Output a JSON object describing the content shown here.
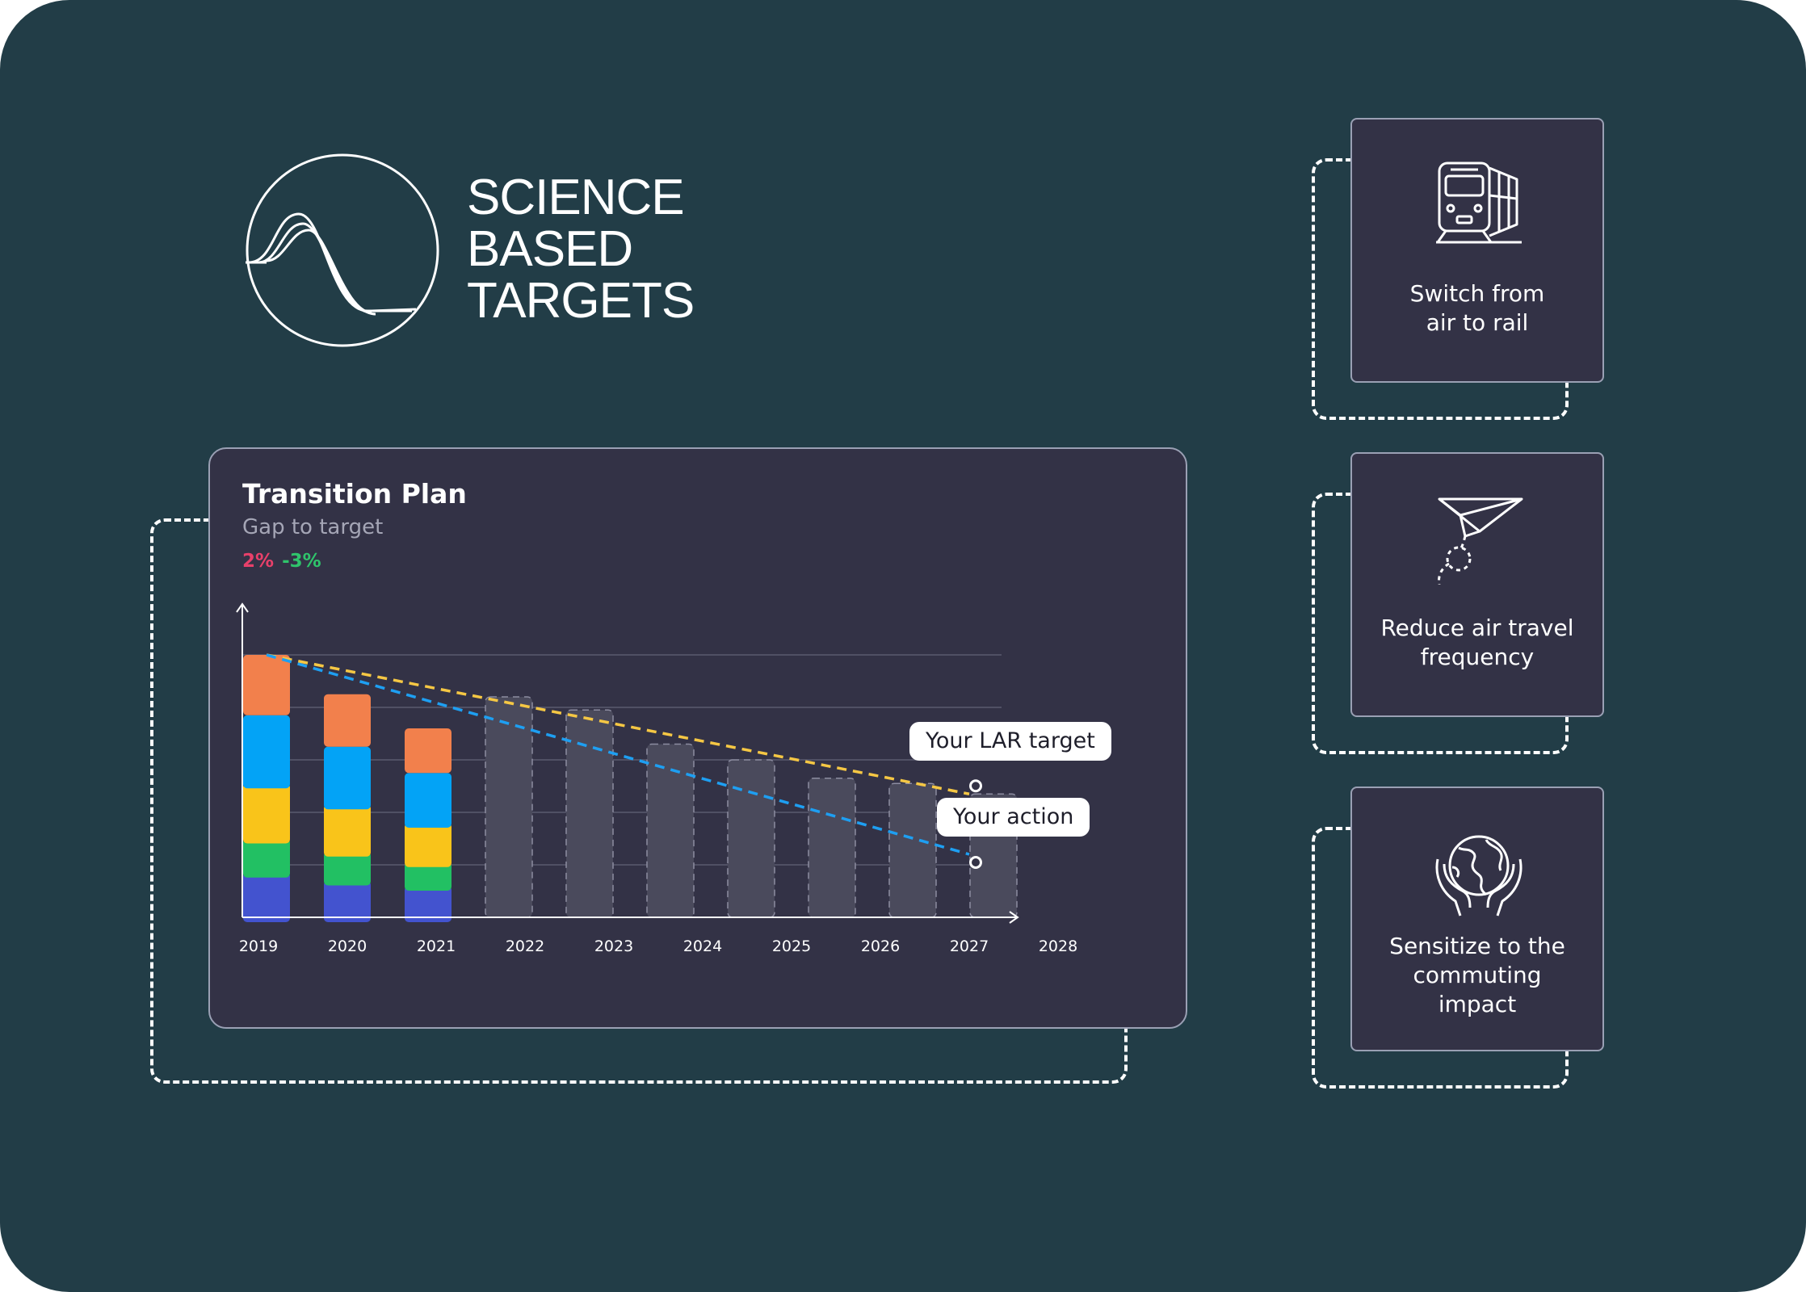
{
  "logo": {
    "lines": [
      "SCIENCE",
      "BASED",
      "TARGETS"
    ]
  },
  "panel": {
    "title": "Transition Plan",
    "subtitle": "Gap to target",
    "gap_positive": "2%",
    "gap_negative": "-3%",
    "callout_target": "Your LAR target",
    "callout_action": "Your action"
  },
  "colors": {
    "background": "#223d47",
    "panel": "#333246",
    "gap_positive": "#e8406a",
    "gap_negative": "#2fc46b",
    "target_line": "#f5c744",
    "action_line": "#1e9ff2",
    "projected_bar": "#4a4a5c"
  },
  "chart_data": {
    "type": "bar",
    "stacked": true,
    "categories": [
      "2019",
      "2020",
      "2021",
      "2022",
      "2023",
      "2024",
      "2025",
      "2026",
      "2027",
      "2028"
    ],
    "ylim": [
      0,
      100
    ],
    "grid": true,
    "series": [
      {
        "color": "#4353cf",
        "values": [
          17,
          14,
          12,
          null,
          null,
          null,
          null,
          null,
          null,
          null
        ]
      },
      {
        "color": "#22c063",
        "values": [
          13,
          11,
          9,
          null,
          null,
          null,
          null,
          null,
          null,
          null
        ]
      },
      {
        "color": "#f9c41a",
        "values": [
          21,
          18,
          15,
          null,
          null,
          null,
          null,
          null,
          null,
          null
        ]
      },
      {
        "color": "#03a3f6",
        "values": [
          26,
          22,
          19,
          null,
          null,
          null,
          null,
          null,
          null,
          null
        ]
      },
      {
        "color": "#f2804c",
        "values": [
          23,
          20,
          17,
          null,
          null,
          null,
          null,
          null,
          null,
          null
        ]
      }
    ],
    "projected": {
      "color": "#4a4a5c",
      "values": [
        null,
        null,
        null,
        84,
        79,
        66,
        60,
        53,
        51,
        47
      ]
    },
    "lines": [
      {
        "color": "#f5c744",
        "from": [
          "2019",
          100
        ],
        "to": [
          "2028",
          47
        ]
      },
      {
        "color": "#1e9ff2",
        "from": [
          "2019",
          100
        ],
        "to": [
          "2028",
          24
        ]
      }
    ]
  },
  "cards": [
    {
      "label": "Switch from\nair to rail",
      "icon": "train-icon"
    },
    {
      "label": "Reduce air travel\nfrequency",
      "icon": "paper-plane-icon"
    },
    {
      "label": "Sensitize to the\ncommuting\nimpact",
      "icon": "globe-hands-icon"
    }
  ]
}
